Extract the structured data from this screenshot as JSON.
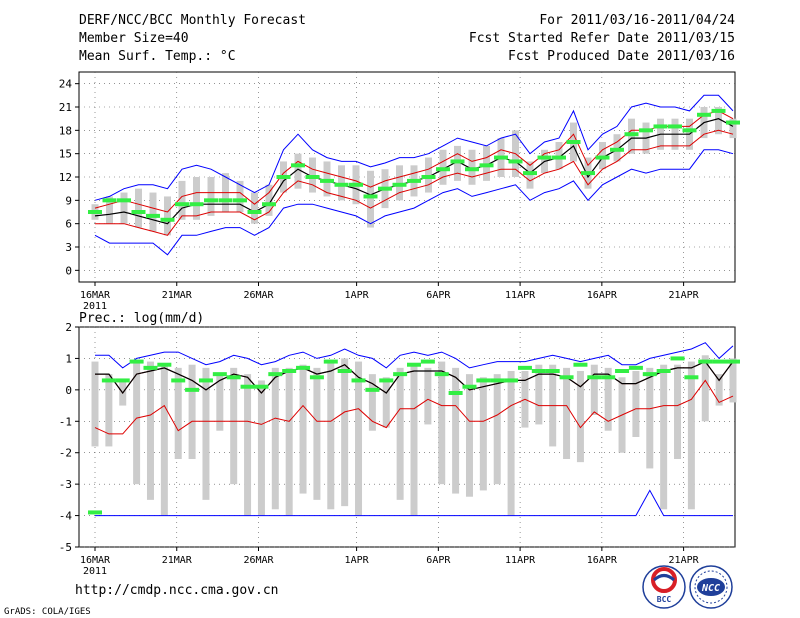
{
  "header": {
    "left_line1": "DERF/NCC/BCC Monthly Forecast",
    "left_line2": "Member Size=40",
    "left_line3": "Mean Surf. Temp.: °C",
    "right_line1": "For 2011/03/16-2011/04/24",
    "right_line2": "Fcst Started Refer Date 2011/03/15",
    "right_line3": "Fcst Produced Date 2011/03/16"
  },
  "footer": {
    "url": "http://cmdp.ncc.cma.gov.cn",
    "credit": "GrADS: COLA/IGES",
    "logo_bcc": "BCC",
    "logo_ncc": "NCC"
  },
  "colors": {
    "ens_mean": "#000000",
    "max_min": "#0000ff",
    "percentile": "#dd0000",
    "box": "#cccccc",
    "marker": "#33ee44",
    "grid": "#555555"
  },
  "chart_data": [
    {
      "type": "box-ensemble",
      "title": "Mean Surf. Temp.: °C",
      "xlabel_extra": "2011",
      "x_ticks": [
        "16MAR",
        "21MAR",
        "26MAR",
        "1APR",
        "6APR",
        "11APR",
        "16APR",
        "21APR"
      ],
      "y_ticks": [
        "0",
        "3",
        "6",
        "9",
        "12",
        "15",
        "18",
        "21",
        "24"
      ],
      "ylim": [
        -1.5,
        25.5
      ],
      "days": 40,
      "grid": true,
      "series": {
        "ens_mean": [
          7.0,
          7.2,
          7.5,
          7.0,
          6.5,
          6.0,
          8.0,
          8.5,
          8.5,
          8.5,
          8.5,
          7.5,
          8.5,
          11.5,
          13.0,
          12.0,
          11.5,
          11.0,
          10.5,
          9.7,
          10.5,
          11.0,
          11.5,
          12.0,
          13.0,
          14.0,
          13.0,
          13.5,
          14.5,
          14.0,
          12.5,
          14.0,
          14.5,
          16.0,
          12.0,
          14.5,
          15.5,
          17.0,
          17.0,
          17.5,
          17.5,
          17.5,
          19.0,
          19.5,
          18.5
        ],
        "upper": [
          9.0,
          9.5,
          10.5,
          11.0,
          11.0,
          10.5,
          13.0,
          13.5,
          13.0,
          12.0,
          11.0,
          10.0,
          11.0,
          15.5,
          17.5,
          15.5,
          14.5,
          14.0,
          14.0,
          13.3,
          13.8,
          14.5,
          14.5,
          15.0,
          16.0,
          17.0,
          16.5,
          16.0,
          17.0,
          17.5,
          15.0,
          16.5,
          17.0,
          20.5,
          15.5,
          17.5,
          18.5,
          21.0,
          21.5,
          21.0,
          21.0,
          20.5,
          22.5,
          22.5,
          20.5
        ],
        "lower": [
          4.5,
          3.5,
          3.5,
          3.5,
          3.5,
          2.0,
          4.5,
          4.5,
          5.0,
          5.5,
          5.5,
          4.5,
          5.5,
          8.0,
          8.5,
          8.5,
          8.0,
          7.5,
          7.0,
          6.0,
          7.0,
          7.5,
          8.0,
          9.0,
          10.0,
          10.5,
          9.5,
          10.0,
          10.5,
          11.0,
          9.0,
          10.0,
          10.5,
          11.5,
          9.0,
          11.0,
          12.0,
          13.0,
          12.5,
          13.0,
          13.0,
          13.0,
          15.5,
          15.5,
          15.0
        ],
        "pct_high": [
          8.0,
          8.5,
          9.0,
          8.5,
          8.0,
          7.5,
          9.5,
          10.0,
          10.0,
          10.0,
          10.0,
          8.5,
          10.0,
          12.5,
          14.0,
          13.0,
          12.5,
          12.0,
          11.5,
          10.7,
          11.5,
          12.0,
          12.5,
          13.0,
          14.0,
          15.0,
          14.0,
          14.5,
          15.5,
          15.0,
          13.5,
          15.0,
          15.5,
          17.5,
          13.5,
          15.5,
          16.5,
          18.0,
          18.0,
          18.5,
          18.5,
          18.5,
          20.0,
          20.5,
          19.5
        ],
        "pct_low": [
          6.0,
          6.0,
          6.0,
          5.5,
          5.0,
          4.5,
          7.0,
          7.0,
          7.5,
          7.5,
          7.5,
          6.5,
          7.5,
          10.0,
          11.5,
          11.0,
          10.0,
          9.5,
          9.0,
          8.0,
          9.0,
          10.0,
          10.5,
          11.0,
          12.0,
          12.5,
          12.0,
          12.5,
          13.0,
          13.0,
          11.5,
          12.5,
          13.0,
          14.0,
          11.0,
          13.0,
          14.0,
          15.5,
          15.5,
          16.0,
          16.0,
          16.0,
          17.5,
          18.0,
          17.5
        ],
        "box_top": [
          8.5,
          9.5,
          10.0,
          10.5,
          10.0,
          9.5,
          11.5,
          12.0,
          12.0,
          12.5,
          11.5,
          10.0,
          11.0,
          14.0,
          15.0,
          14.5,
          14.0,
          13.5,
          13.5,
          12.8,
          13.0,
          13.5,
          13.5,
          14.5,
          15.5,
          16.0,
          15.5,
          16.0,
          17.0,
          18.0,
          14.0,
          15.5,
          16.5,
          19.0,
          14.5,
          16.5,
          17.5,
          19.5,
          19.0,
          19.5,
          19.5,
          19.5,
          21.0,
          21.0,
          19.5
        ],
        "box_bottom": [
          6.5,
          6.0,
          6.0,
          5.5,
          5.0,
          4.5,
          6.5,
          6.5,
          7.0,
          7.5,
          7.5,
          6.0,
          7.0,
          10.0,
          10.5,
          10.0,
          9.5,
          9.0,
          8.5,
          5.5,
          8.0,
          9.0,
          9.5,
          10.0,
          11.0,
          11.5,
          11.0,
          11.5,
          12.0,
          12.0,
          10.5,
          12.5,
          13.0,
          14.0,
          10.5,
          13.0,
          14.0,
          15.0,
          15.0,
          15.5,
          15.5,
          15.5,
          17.0,
          17.5,
          17.0
        ],
        "markers": [
          7.5,
          9.0,
          9.0,
          7.5,
          7.0,
          6.5,
          8.5,
          8.5,
          9.0,
          9.0,
          9.0,
          7.5,
          8.5,
          12.0,
          13.5,
          12.0,
          11.5,
          11.0,
          11.0,
          9.5,
          10.5,
          11.0,
          11.5,
          12.0,
          13.0,
          14.0,
          13.0,
          13.5,
          14.5,
          14.0,
          12.5,
          14.5,
          14.5,
          16.5,
          12.5,
          14.5,
          15.5,
          17.5,
          18.0,
          18.5,
          18.5,
          18.0,
          20.0,
          20.5,
          19.0
        ]
      }
    },
    {
      "type": "box-ensemble",
      "title": "Prec.: log(mm/d)",
      "xlabel_extra": "2011",
      "x_ticks": [
        "16MAR",
        "21MAR",
        "26MAR",
        "1APR",
        "6APR",
        "11APR",
        "16APR",
        "21APR"
      ],
      "y_ticks": [
        "-5",
        "-4",
        "-3",
        "-2",
        "-1",
        "0",
        "1",
        "2"
      ],
      "ylim": [
        -5.0,
        2.0
      ],
      "days": 40,
      "grid": true,
      "series": {
        "ens_mean": [
          0.5,
          0.5,
          -0.1,
          0.5,
          0.6,
          0.7,
          0.5,
          0.3,
          0.0,
          0.3,
          0.5,
          0.4,
          -0.1,
          0.4,
          0.6,
          0.7,
          0.5,
          0.6,
          0.8,
          0.4,
          0.2,
          -0.1,
          0.5,
          0.6,
          0.6,
          0.6,
          0.4,
          0.0,
          0.1,
          0.2,
          0.3,
          0.3,
          0.5,
          0.5,
          0.4,
          0.1,
          0.5,
          0.5,
          0.2,
          0.2,
          0.4,
          0.6,
          0.7,
          0.7,
          0.9,
          0.3,
          0.9
        ],
        "upper": [
          1.1,
          1.1,
          0.7,
          1.0,
          1.1,
          1.2,
          1.2,
          1.0,
          0.8,
          0.9,
          1.1,
          1.0,
          0.8,
          0.9,
          1.1,
          1.2,
          1.0,
          1.1,
          1.3,
          1.1,
          1.0,
          0.7,
          1.1,
          1.2,
          1.1,
          1.2,
          1.0,
          0.7,
          0.8,
          0.9,
          0.9,
          0.9,
          1.0,
          1.1,
          1.0,
          0.9,
          1.0,
          1.1,
          0.8,
          0.8,
          1.0,
          1.1,
          1.2,
          1.3,
          1.5,
          1.0,
          1.4
        ],
        "lower": [
          -4.0,
          -4.0,
          -4.0,
          -4.0,
          -4.0,
          -4.0,
          -4.0,
          -4.0,
          -4.0,
          -4.0,
          -4.0,
          -4.0,
          -4.0,
          -4.0,
          -4.0,
          -4.0,
          -4.0,
          -4.0,
          -4.0,
          -4.0,
          -4.0,
          -4.0,
          -4.0,
          -4.0,
          -4.0,
          -4.0,
          -4.0,
          -4.0,
          -4.0,
          -4.0,
          -4.0,
          -4.0,
          -4.0,
          -4.0,
          -4.0,
          -4.0,
          -4.0,
          -4.0,
          -4.0,
          -4.0,
          -3.2,
          -4.0,
          -4.0,
          -4.0,
          -4.0,
          -4.0,
          -4.0
        ],
        "pct_high": [
          0.5,
          0.5,
          -0.1,
          0.5,
          0.6,
          0.7,
          0.5,
          0.3,
          0.0,
          0.3,
          0.5,
          0.4,
          -0.1,
          0.4,
          0.6,
          0.7,
          0.5,
          0.6,
          0.8,
          0.4,
          0.2,
          -0.1,
          0.5,
          0.6,
          0.6,
          0.6,
          0.4,
          0.0,
          0.1,
          0.2,
          0.3,
          0.3,
          0.5,
          0.5,
          0.4,
          0.1,
          0.5,
          0.5,
          0.2,
          0.2,
          0.4,
          0.6,
          0.7,
          0.7,
          0.9,
          0.3,
          0.9
        ],
        "pct_low": [
          -1.2,
          -1.4,
          -1.4,
          -0.9,
          -0.8,
          -0.5,
          -1.3,
          -1.0,
          -1.0,
          -1.0,
          -1.0,
          -1.0,
          -1.1,
          -0.9,
          -1.0,
          -0.5,
          -1.0,
          -1.0,
          -0.7,
          -0.6,
          -1.0,
          -1.2,
          -0.6,
          -0.6,
          -0.3,
          -0.5,
          -0.5,
          -1.0,
          -1.0,
          -0.8,
          -0.5,
          -0.3,
          -0.5,
          -0.5,
          -0.5,
          -1.2,
          -0.7,
          -1.0,
          -0.8,
          -0.6,
          -0.6,
          -0.5,
          -0.5,
          -0.3,
          0.3,
          -0.4,
          -0.2
        ],
        "box_top": [
          0.9,
          0.5,
          0.3,
          0.9,
          0.9,
          0.8,
          0.7,
          0.8,
          0.7,
          0.5,
          0.7,
          0.5,
          0.3,
          0.7,
          0.7,
          0.8,
          0.7,
          0.9,
          1.0,
          0.9,
          0.5,
          0.4,
          0.7,
          0.8,
          0.7,
          0.9,
          0.7,
          0.5,
          0.4,
          0.5,
          0.6,
          0.6,
          0.8,
          0.8,
          0.7,
          0.6,
          0.8,
          0.7,
          0.4,
          0.6,
          0.7,
          0.8,
          0.8,
          0.9,
          1.1,
          0.5,
          1.0
        ],
        "box_bottom": [
          -1.8,
          -1.8,
          -0.5,
          -3.0,
          -3.5,
          -4.0,
          -2.2,
          -2.2,
          -3.5,
          -1.3,
          -3.0,
          -4.0,
          -4.0,
          -3.8,
          -4.0,
          -3.3,
          -3.5,
          -3.8,
          -3.7,
          -4.0,
          -1.3,
          -1.2,
          -3.5,
          -4.0,
          -1.1,
          -3.0,
          -3.3,
          -3.4,
          -3.2,
          -3.0,
          -4.0,
          -1.2,
          -1.1,
          -1.8,
          -2.2,
          -2.3,
          -0.8,
          -1.3,
          -2.0,
          -1.5,
          -2.5,
          -3.8,
          -2.2,
          -3.8,
          -1.0,
          -0.5,
          -0.4
        ],
        "markers": [
          -3.9,
          0.3,
          0.3,
          0.9,
          0.7,
          0.8,
          0.3,
          0.0,
          0.3,
          0.5,
          0.4,
          0.1,
          0.1,
          0.5,
          0.6,
          0.7,
          0.4,
          0.9,
          0.6,
          0.3,
          0.0,
          0.3,
          0.5,
          0.8,
          0.9,
          0.5,
          -0.1,
          0.1,
          0.3,
          0.3,
          0.3,
          0.7,
          0.6,
          0.6,
          0.4,
          0.8,
          0.4,
          0.4,
          0.6,
          0.7,
          0.5,
          0.6,
          1.0,
          0.4,
          0.9,
          0.9,
          0.9
        ]
      }
    }
  ]
}
